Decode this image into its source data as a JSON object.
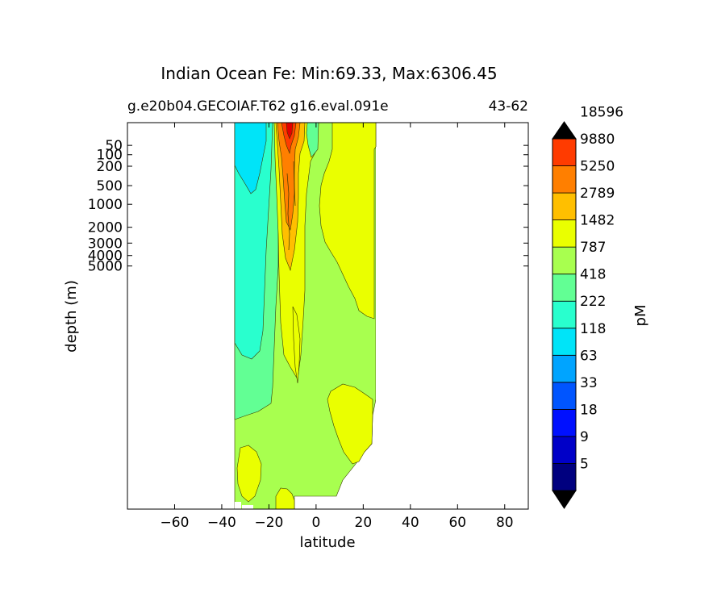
{
  "chart_data": {
    "type": "contourf",
    "title": "Indian Ocean Fe: Min:69.33, Max:6306.45",
    "subtitle_left": "g.e20b04.GECOIAF.T62 g16.eval.091e",
    "subtitle_right": "43-62",
    "xlabel": "latitude",
    "ylabel": "depth (m)",
    "xlim": [
      -80,
      90
    ],
    "x_ticks": [
      -60,
      -40,
      -20,
      0,
      20,
      40,
      60,
      80
    ],
    "x_tick_labels": [
      "−60",
      "−40",
      "−20",
      "0",
      "20",
      "40",
      "60",
      "80"
    ],
    "y_scale": "nonlinear (depth)",
    "y_ticks": [
      50,
      100,
      200,
      500,
      1000,
      2000,
      3000,
      4000,
      5000
    ],
    "y_tick_labels": [
      "50",
      "100",
      "200",
      "500",
      "1000",
      "2000",
      "3000",
      "4000",
      "5000"
    ],
    "data_extent_latitude": [
      -34,
      26
    ],
    "colorbar": {
      "label": "pM",
      "extend": "both",
      "tick_labels": [
        "5",
        "9",
        "18",
        "33",
        "63",
        "118",
        "222",
        "418",
        "787",
        "1482",
        "2789",
        "5250",
        "9880",
        "18596"
      ],
      "colors": [
        "#00007f",
        "#0000c8",
        "#0010ff",
        "#0055ff",
        "#00a4ff",
        "#00e4f8",
        "#29ffce",
        "#62ff94",
        "#a8ff4f",
        "#eaff00",
        "#ffbf00",
        "#ff7f00",
        "#ff3b00",
        "#e30000",
        "#7f0000"
      ]
    }
  }
}
